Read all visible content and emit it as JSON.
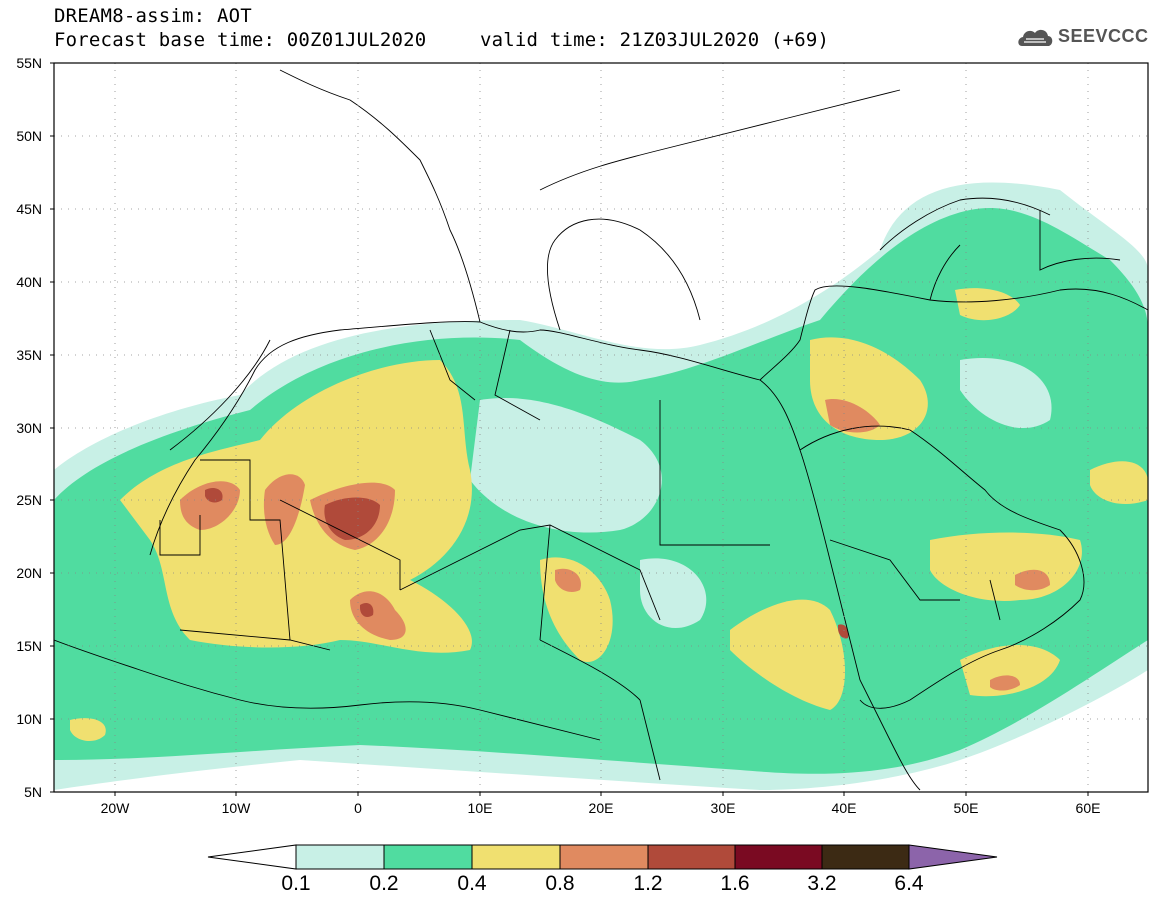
{
  "header": {
    "line1": "DREAM8-assim: AOT",
    "line2": "Forecast base time: 00Z01JUL2020",
    "line3": "valid time: 21Z03JUL2020 (+69)"
  },
  "logo": {
    "text": "SEEVCCC",
    "icon": "cloud-icon"
  },
  "map": {
    "lon_range": [
      -25,
      65
    ],
    "lat_range": [
      5,
      55
    ],
    "lat_labels": [
      "55N",
      "50N",
      "45N",
      "40N",
      "35N",
      "30N",
      "25N",
      "20N",
      "15N",
      "10N",
      "5N"
    ],
    "lon_labels": [
      "20W",
      "10W",
      "0",
      "10E",
      "20E",
      "30E",
      "40E",
      "50E",
      "60E"
    ],
    "grid": "dotted"
  },
  "colorbar": {
    "labels": [
      "0.1",
      "0.2",
      "0.4",
      "0.8",
      "1.2",
      "1.6",
      "3.2",
      "6.4"
    ],
    "colors": [
      "#c8f0e6",
      "#50dca0",
      "#f0e070",
      "#e08a60",
      "#b04a3a",
      "#7a0a22",
      "#3c2a14",
      "#8c64aa"
    ],
    "under_color": "#ffffff",
    "over_color": "#8c64aa"
  }
}
